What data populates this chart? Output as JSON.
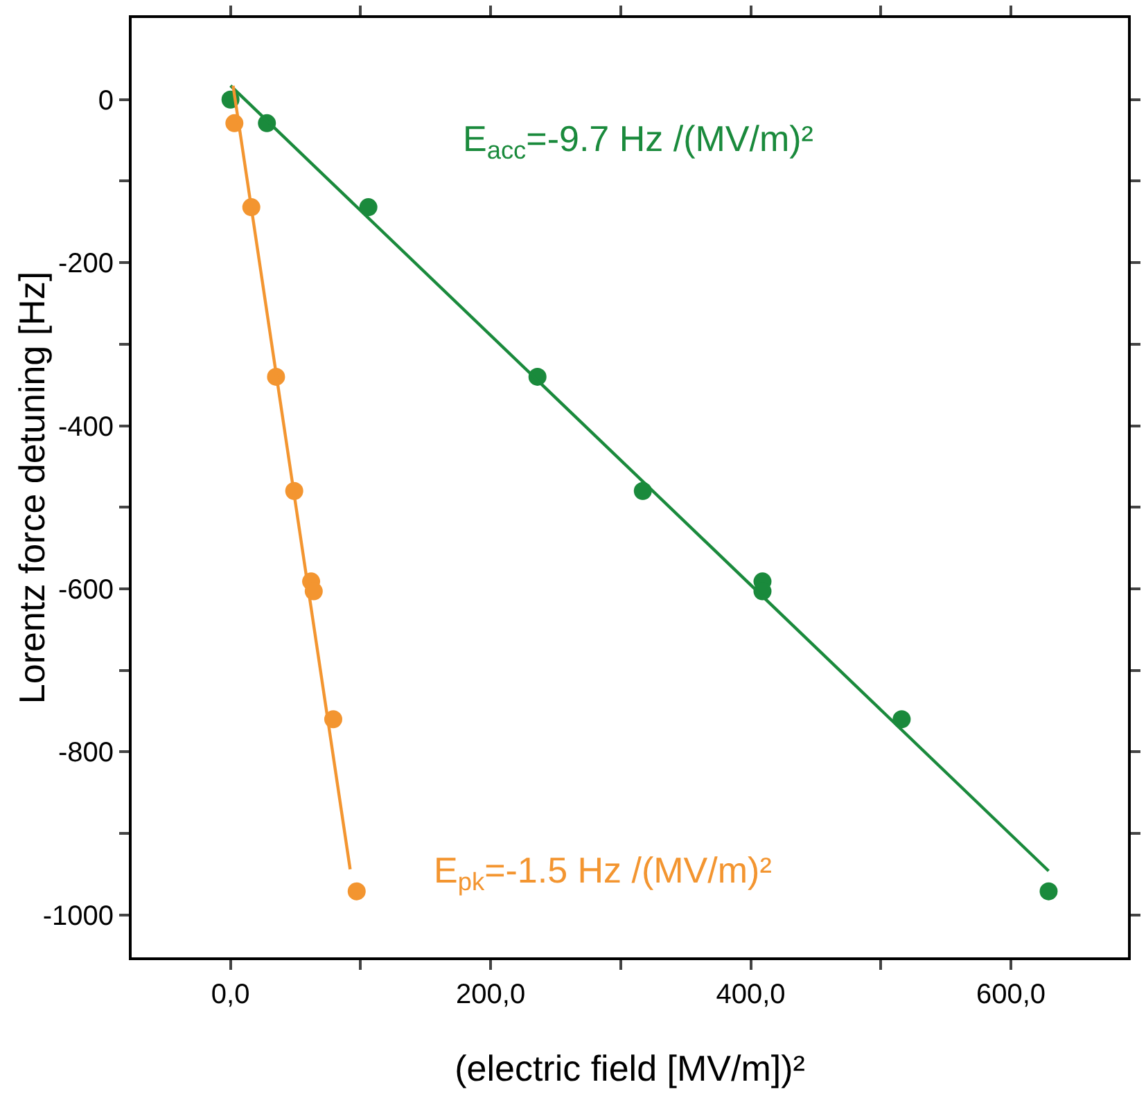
{
  "chart_data": {
    "type": "scatter",
    "xlabel": "(electric field [MV/m])²",
    "ylabel": "Lorentz force detuning [Hz]",
    "xlim": [
      -76,
      690
    ],
    "ylim": [
      -1052,
      100
    ],
    "xticks": [
      {
        "value": 0,
        "label": "0,0"
      },
      {
        "value": 100,
        "label": null
      },
      {
        "value": 200,
        "label": "200,0"
      },
      {
        "value": 300,
        "label": null
      },
      {
        "value": 400,
        "label": "400,0"
      },
      {
        "value": 500,
        "label": null
      },
      {
        "value": 600,
        "label": "600,0"
      }
    ],
    "yticks": [
      0,
      {
        "value": -100,
        "label": null
      },
      -200,
      {
        "value": -300,
        "label": null
      },
      -400,
      {
        "value": -500,
        "label": null
      },
      -600,
      {
        "value": -700,
        "label": null
      },
      -800,
      {
        "value": -900,
        "label": null
      },
      -1000
    ],
    "grid": false,
    "marker": "circle",
    "series": [
      {
        "color": "#1a8a3c",
        "x": [
          0,
          28,
          106,
          236,
          317,
          409,
          409,
          516,
          629
        ],
        "values": [
          0,
          -29,
          -132,
          -340,
          -480,
          -591,
          -603,
          -760,
          -971
        ]
      },
      {
        "color": "#f39530",
        "x": [
          3,
          16,
          35,
          49,
          62,
          64,
          79,
          97
        ],
        "values": [
          -29,
          -132,
          -340,
          -480,
          -591,
          -603,
          -760,
          -971
        ]
      },
      {
        "type": "line",
        "marker": "none",
        "line_style": "solid",
        "color": "#1a8a3c",
        "x": [
          0,
          629
        ],
        "values": [
          17,
          -946
        ]
      },
      {
        "type": "line",
        "marker": "none",
        "line_style": "solid",
        "color": "#f39530",
        "x": [
          2,
          92
        ],
        "values": [
          17,
          -944
        ]
      }
    ],
    "annotations": [
      "E$_{acc}$=-9.7 Hz /(MV/m)²",
      "E$_{pk}$=-1.5 Hz /(MV/m)²"
    ]
  }
}
